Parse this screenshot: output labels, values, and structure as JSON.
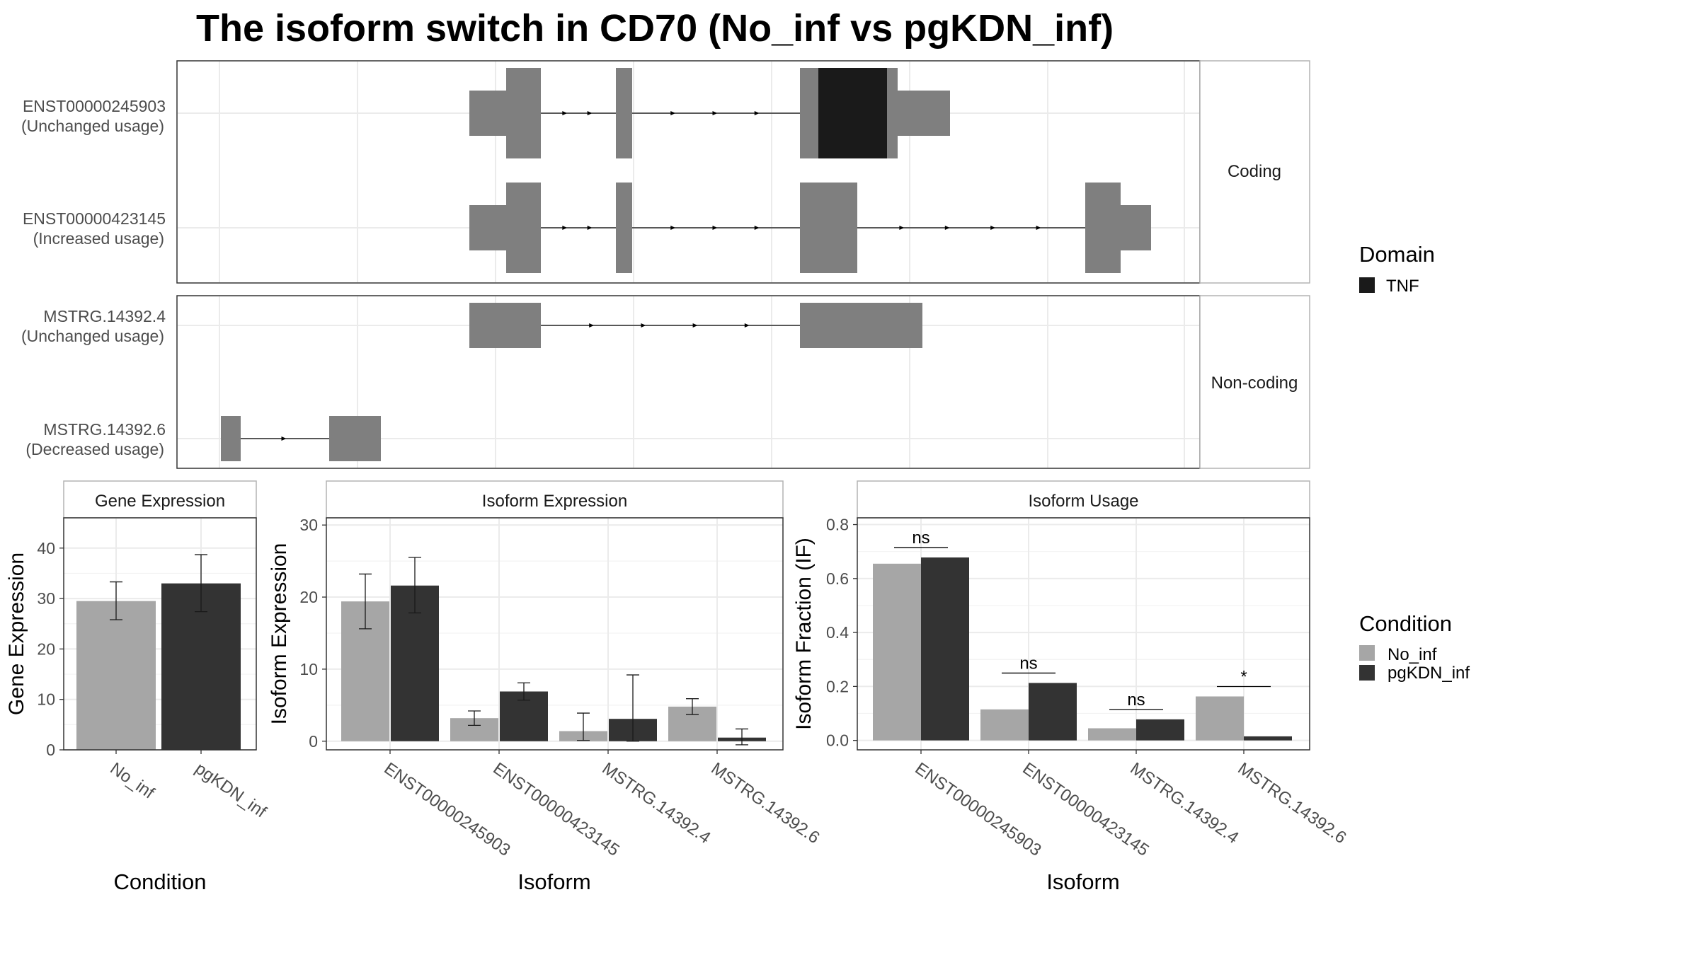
{
  "title": "The isoform switch in CD70 (No_inf vs pgKDN_inf)",
  "colors": {
    "exon": "#7f7f7f",
    "domain": "#1a1a1a",
    "no_inf": "#a6a6a6",
    "pgkdn_inf": "#333333",
    "panel_border": "#333333",
    "strip_border": "#b3b3b3",
    "grid": "#ebebeb",
    "text": "#4d4d4d"
  },
  "structure": {
    "coding_label": "Coding",
    "noncoding_label": "Non-coding",
    "domain_legend": {
      "title": "Domain",
      "items": [
        {
          "name": "TNF",
          "color": "#1a1a1a"
        }
      ]
    },
    "transcripts": [
      {
        "id": "ENST00000245903",
        "usage": "(Unchanged usage)",
        "group": "coding"
      },
      {
        "id": "ENST00000423145",
        "usage": "(Increased usage)",
        "group": "coding"
      },
      {
        "id": "MSTRG.14392.4",
        "usage": "(Unchanged usage)",
        "group": "noncoding"
      },
      {
        "id": "MSTRG.14392.6",
        "usage": "(Decreased usage)",
        "group": "noncoding"
      }
    ]
  },
  "condition_legend": {
    "title": "Condition",
    "items": [
      {
        "name": "No_inf",
        "color": "#a6a6a6"
      },
      {
        "name": "pgKDN_inf",
        "color": "#333333"
      }
    ]
  },
  "chart_data": [
    {
      "type": "bar",
      "title": "Gene Expression",
      "xlabel": "Condition",
      "ylabel": "Gene Expression",
      "ylim": [
        0,
        46
      ],
      "yticks": [
        0,
        10,
        20,
        30,
        40
      ],
      "categories": [
        "No_inf",
        "pgKDN_inf"
      ],
      "series": [
        {
          "name": "Condition",
          "values": [
            29.5,
            33.0
          ],
          "err_low": [
            25.8,
            27.4
          ],
          "err_high": [
            33.3,
            38.7
          ]
        }
      ]
    },
    {
      "type": "bar",
      "title": "Isoform Expression",
      "xlabel": "Isoform",
      "ylabel": "Isoform Expression",
      "ylim": [
        -1.2,
        31
      ],
      "yticks": [
        0,
        10,
        20,
        30
      ],
      "categories": [
        "ENST00000245903",
        "ENST00000423145",
        "MSTRG.14392.4",
        "MSTRG.14392.6"
      ],
      "series": [
        {
          "name": "No_inf",
          "values": [
            19.4,
            3.2,
            1.4,
            4.8
          ],
          "err_low": [
            15.6,
            2.2,
            0.1,
            3.7
          ],
          "err_high": [
            23.2,
            4.2,
            3.9,
            5.9
          ]
        },
        {
          "name": "pgKDN_inf",
          "values": [
            21.6,
            6.9,
            3.1,
            0.5
          ],
          "err_low": [
            17.8,
            5.7,
            0.0,
            -0.5
          ],
          "err_high": [
            25.5,
            8.1,
            9.2,
            1.7
          ]
        }
      ]
    },
    {
      "type": "bar",
      "title": "Isoform Usage",
      "xlabel": "Isoform",
      "ylabel": "Isoform Fraction (IF)",
      "ylim": [
        -0.035,
        0.825
      ],
      "yticks": [
        "0.0",
        "0.2",
        "0.4",
        "0.6",
        "0.8"
      ],
      "categories": [
        "ENST00000245903",
        "ENST00000423145",
        "MSTRG.14392.4",
        "MSTRG.14392.6"
      ],
      "series": [
        {
          "name": "No_inf",
          "values": [
            0.655,
            0.115,
            0.045,
            0.163
          ]
        },
        {
          "name": "pgKDN_inf",
          "values": [
            0.678,
            0.213,
            0.078,
            0.015
          ]
        }
      ],
      "significance": [
        "ns",
        "ns",
        "ns",
        "*"
      ]
    }
  ]
}
